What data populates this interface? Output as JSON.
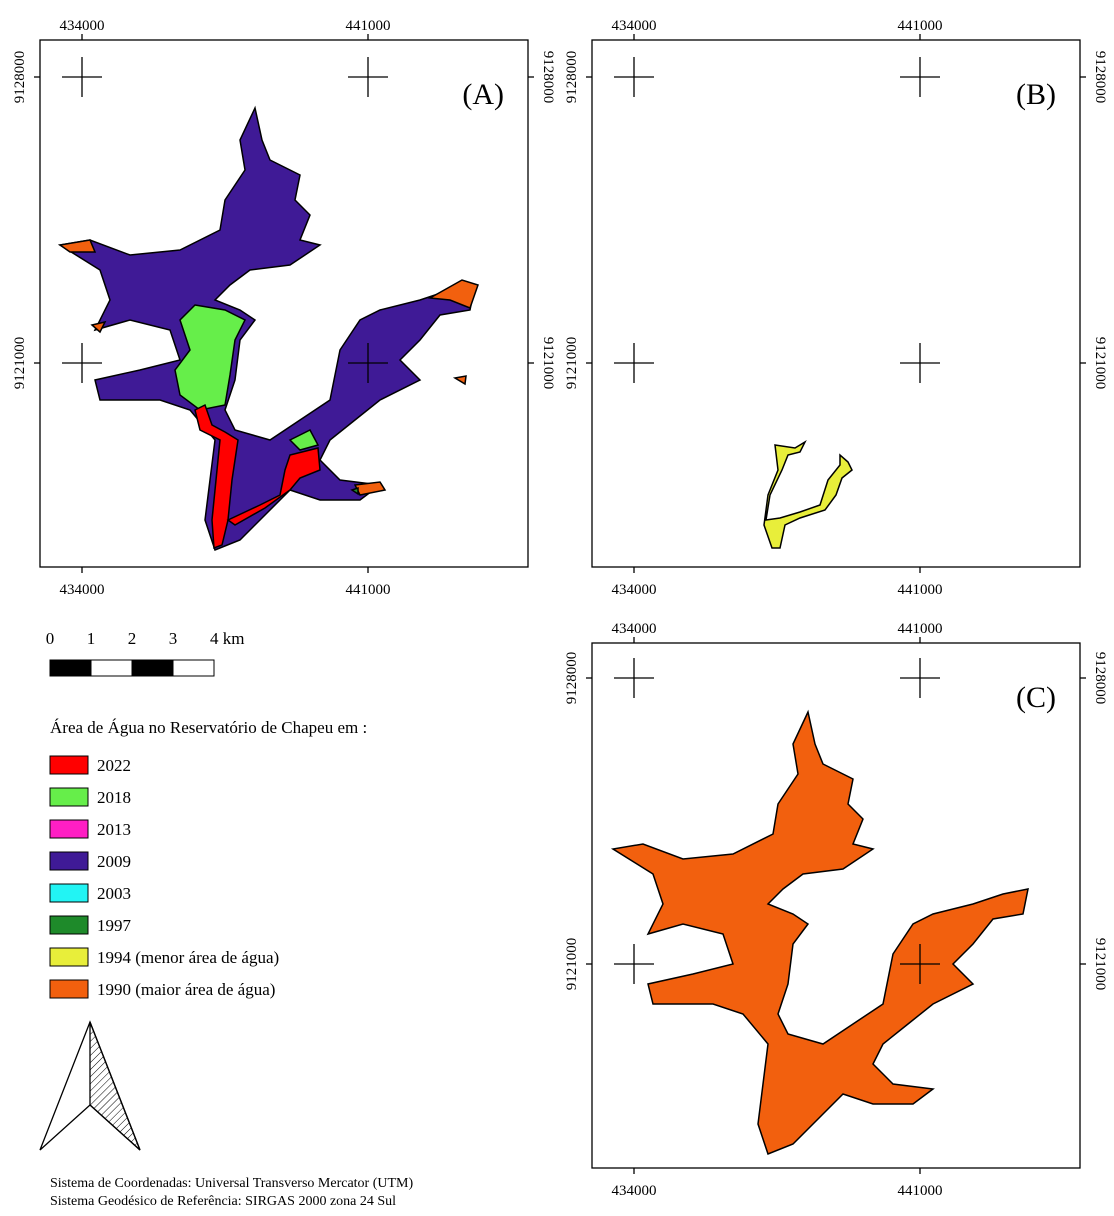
{
  "panels": [
    {
      "label": "(A)",
      "x_ticks": [
        434000,
        441000
      ],
      "y_ticks": [
        9128000,
        9121000
      ]
    },
    {
      "label": "(B)",
      "x_ticks": [
        434000,
        441000
      ],
      "y_ticks": [
        9128000,
        9121000
      ]
    },
    {
      "label": "(C)",
      "x_ticks": [
        434000,
        441000
      ],
      "y_ticks": [
        9128000,
        9121000
      ]
    }
  ],
  "scale_bar": {
    "labels": [
      "0",
      "1",
      "2",
      "3",
      "4 km"
    ]
  },
  "legend": {
    "title": "Área de Água no Reservatório de Chapeu em :",
    "items": [
      {
        "label": "2022",
        "color": "#ff0000"
      },
      {
        "label": "2018",
        "color": "#66ee4a"
      },
      {
        "label": "2013",
        "color": "#ff1fc4"
      },
      {
        "label": "2009",
        "color": "#3f1a96"
      },
      {
        "label": "2003",
        "color": "#22f4f4"
      },
      {
        "label": "1997",
        "color": "#1e8a2a"
      },
      {
        "label": "1994 (menor área de água)",
        "color": "#e8ee3a"
      },
      {
        "label": "1990 (maior área de água)",
        "color": "#f2600e"
      }
    ]
  },
  "footer": [
    "Sistema de Coordenadas: Universal Transverso Mercator (UTM)",
    "Sistema Geodésico de Referência: SIRGAS 2000 zona 24 Sul"
  ]
}
